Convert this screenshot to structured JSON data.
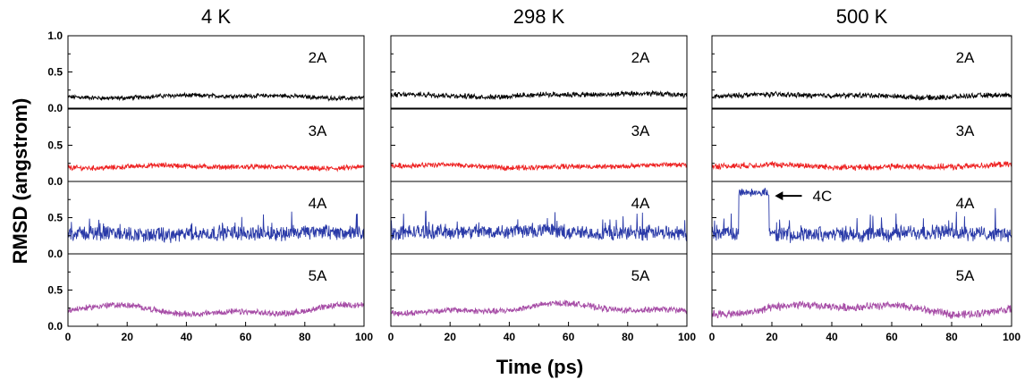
{
  "chart_data": {
    "type": "line",
    "columns": [
      "4 K",
      "298 K",
      "500 K"
    ],
    "rows": [
      "2A",
      "3A",
      "4A",
      "5A"
    ],
    "xlabel": "Time (ps)",
    "ylabel": "RMSD (angstrom)",
    "xlim": [
      0,
      100
    ],
    "ylim": [
      0,
      1.0
    ],
    "x_ticks": [
      "0",
      "20",
      "40",
      "60",
      "80",
      "100"
    ],
    "y_ticks_top": [
      "0.0",
      "0.5",
      "1.0"
    ],
    "y_ticks": [
      "0.0",
      "0.5"
    ],
    "grid": false,
    "series_colors": {
      "2A": "#000000",
      "3A": "#ee2222",
      "4A": "#2a3aa8",
      "5A": "#a64ca6"
    },
    "series": [
      {
        "temperature": "4 K",
        "structure": "2A",
        "mean": 0.16,
        "fluctuation": 0.05
      },
      {
        "temperature": "4 K",
        "structure": "3A",
        "mean": 0.2,
        "fluctuation": 0.06
      },
      {
        "temperature": "4 K",
        "structure": "4A",
        "mean": 0.28,
        "fluctuation": 0.17
      },
      {
        "temperature": "4 K",
        "structure": "5A",
        "mean": 0.22,
        "fluctuation": 0.07
      },
      {
        "temperature": "298 K",
        "structure": "2A",
        "mean": 0.18,
        "fluctuation": 0.06
      },
      {
        "temperature": "298 K",
        "structure": "3A",
        "mean": 0.21,
        "fluctuation": 0.06
      },
      {
        "temperature": "298 K",
        "structure": "4A",
        "mean": 0.3,
        "fluctuation": 0.17
      },
      {
        "temperature": "298 K",
        "structure": "5A",
        "mean": 0.24,
        "fluctuation": 0.07
      },
      {
        "temperature": "500 K",
        "structure": "2A",
        "mean": 0.17,
        "fluctuation": 0.06
      },
      {
        "temperature": "500 K",
        "structure": "3A",
        "mean": 0.21,
        "fluctuation": 0.07
      },
      {
        "temperature": "500 K",
        "structure": "4A",
        "mean": 0.28,
        "fluctuation": 0.17,
        "excursion": {
          "x_start": 9,
          "x_end": 19,
          "mean": 0.85
        }
      },
      {
        "temperature": "500 K",
        "structure": "5A",
        "mean": 0.24,
        "fluctuation": 0.09
      }
    ],
    "annotations": [
      {
        "text": "4C",
        "temperature": "500 K",
        "structure": "4A",
        "arrow": true
      }
    ]
  }
}
